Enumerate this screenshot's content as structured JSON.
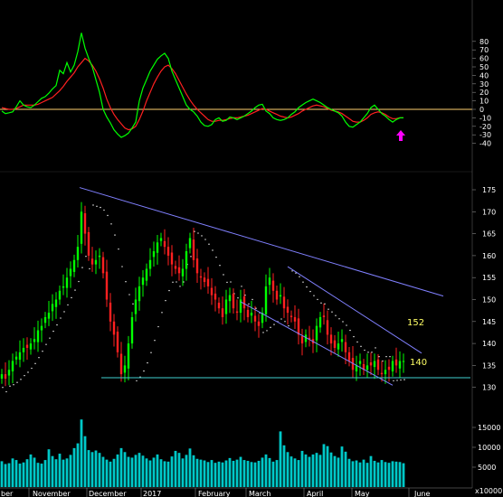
{
  "colors": {
    "background": "#000000",
    "up_candle": "#00ff00",
    "down_candle": "#ff2020",
    "volume": "#00c8c8",
    "trendline": "#8080ff",
    "support": "#40d0d0",
    "osc_fast": "#00ff00",
    "osc_slow": "#ff2020",
    "zero_line": "#ffd070",
    "sar": "#ffffff",
    "annotation": "#ffff66",
    "arrow": "#ff00ff",
    "text": "#ffffff"
  },
  "months": [
    "ber",
    "November",
    "December",
    "2017",
    "February",
    "March",
    "April",
    "May",
    "June"
  ],
  "axes": {
    "osc_ticks": [
      "80",
      "70",
      "60",
      "50",
      "40",
      "30",
      "20",
      "10",
      "0",
      "-10",
      "-20",
      "-30",
      "-40"
    ],
    "price_ticks": [
      "175",
      "170",
      "165",
      "160",
      "155",
      "150",
      "145",
      "140",
      "135",
      "130"
    ],
    "volume_ticks": [
      "15000",
      "10000",
      "5000"
    ],
    "volume_unit": "x10000"
  },
  "annotations": {
    "upper_target": "152",
    "lower_target": "140"
  },
  "chart_data": [
    {
      "type": "line",
      "panel": "oscillator",
      "ylim": [
        -45,
        90
      ],
      "x": [
        0,
        4,
        8,
        12,
        16,
        20,
        24,
        28,
        32,
        36,
        40,
        44,
        48,
        52,
        56,
        60,
        64,
        68,
        72,
        76,
        80,
        84,
        88,
        92,
        96,
        100,
        104,
        108,
        112,
        116,
        120,
        124,
        128,
        132,
        136,
        140,
        144,
        148,
        152,
        156,
        160,
        164,
        168,
        172,
        176,
        180,
        184,
        188,
        192,
        196,
        200,
        204,
        208,
        212,
        216,
        220,
        224,
        228,
        232,
        236,
        240,
        244,
        248,
        252,
        256,
        260,
        264,
        268,
        272,
        276,
        280,
        284,
        288,
        292,
        296,
        300,
        304,
        308,
        312,
        316,
        320,
        324,
        328,
        332,
        336,
        340,
        344,
        348,
        352,
        356,
        360,
        364,
        368,
        372,
        376,
        380,
        384,
        388,
        392,
        396,
        400,
        404,
        408,
        412,
        416,
        420,
        424,
        428,
        432,
        436,
        440,
        444
      ],
      "series": [
        {
          "values": [
            -2,
            -5,
            -4,
            -3,
            3,
            10,
            5,
            3,
            2,
            5,
            9,
            13,
            15,
            19,
            24,
            28,
            46,
            42,
            55,
            44,
            52,
            68,
            90,
            72,
            60,
            50,
            35,
            20,
            0,
            -9,
            -16,
            -24,
            -29,
            -33,
            -31,
            -28,
            -22,
            -15,
            10,
            25,
            35,
            45,
            52,
            59,
            63,
            66,
            60,
            45,
            35,
            25,
            15,
            5,
            0,
            -3,
            -8,
            -15,
            -19,
            -20,
            -18,
            -12,
            -10,
            -14,
            -13,
            -9,
            -10,
            -12,
            -10,
            -8,
            -5,
            -2,
            2,
            5,
            6,
            -2,
            -5,
            -10,
            -12,
            -13,
            -12,
            -10,
            -6,
            -3,
            2,
            5,
            8,
            10,
            12,
            10,
            8,
            5,
            2,
            0,
            -2,
            -4,
            -8,
            -15,
            -20,
            -21,
            -18,
            -15,
            -10,
            -5,
            2,
            5,
            0,
            -5,
            -8,
            -12,
            -15,
            -12,
            -10,
            -10
          ]
        },
        {
          "values": [
            2,
            1,
            0,
            0,
            1,
            3,
            5,
            5,
            5,
            5,
            6,
            8,
            10,
            12,
            14,
            18,
            22,
            27,
            33,
            38,
            43,
            50,
            55,
            60,
            57,
            52,
            45,
            36,
            25,
            12,
            2,
            -6,
            -12,
            -17,
            -22,
            -24,
            -23,
            -20,
            -12,
            -2,
            10,
            20,
            30,
            38,
            45,
            50,
            52,
            48,
            42,
            34,
            26,
            18,
            11,
            5,
            0,
            -4,
            -8,
            -12,
            -14,
            -14,
            -13,
            -13,
            -12,
            -11,
            -10,
            -10,
            -9,
            -8,
            -7,
            -5,
            -3,
            -1,
            1,
            0,
            -2,
            -4,
            -6,
            -8,
            -9,
            -10,
            -9,
            -7,
            -5,
            -2,
            0,
            2,
            4,
            5,
            4,
            3,
            1,
            -1,
            -2,
            -3,
            -5,
            -8,
            -11,
            -14,
            -15,
            -15,
            -13,
            -10,
            -6,
            -4,
            -3,
            -4,
            -6,
            -9,
            -11,
            -11,
            -10,
            -10
          ]
        }
      ]
    },
    {
      "type": "line",
      "panel": "price",
      "ylim": [
        128,
        178
      ],
      "x": [
        0,
        4,
        8,
        12,
        16,
        20,
        24,
        28,
        32,
        36,
        40,
        44,
        48,
        52,
        56,
        60,
        64,
        68,
        72,
        76,
        80,
        84,
        88,
        92,
        96,
        100,
        104,
        108,
        112,
        116,
        120,
        124,
        128,
        132,
        136,
        140,
        144,
        148,
        152,
        156,
        160,
        164,
        168,
        172,
        176,
        180,
        184,
        188,
        192,
        196,
        200,
        204,
        208,
        212,
        216,
        220,
        224,
        228,
        232,
        236,
        240,
        244,
        248,
        252,
        256,
        260,
        264,
        268,
        272,
        276,
        280,
        284,
        288,
        292,
        296,
        300,
        304,
        308,
        312,
        316,
        320,
        324,
        328,
        332,
        336,
        340,
        344,
        348,
        352,
        356,
        360,
        364,
        368,
        372,
        376,
        380,
        384,
        388,
        392,
        396,
        400,
        404,
        408,
        412,
        416,
        420,
        424,
        428,
        432,
        436,
        440,
        444
      ],
      "values": [
        133,
        132,
        134,
        136,
        137,
        138,
        139,
        139,
        140,
        141,
        143,
        144,
        146,
        147,
        149,
        150,
        152,
        153,
        155,
        157,
        159,
        162,
        170,
        165,
        160,
        158,
        159,
        160,
        156,
        150,
        145,
        142,
        138,
        133,
        135,
        140,
        146,
        150,
        153,
        155,
        157,
        159,
        161,
        163,
        164,
        162,
        160,
        158,
        157,
        156,
        157,
        161,
        164,
        159,
        156,
        155,
        154,
        153,
        151,
        150,
        148,
        146,
        150,
        151,
        148,
        147,
        150,
        148,
        146,
        147,
        145,
        144,
        147,
        153,
        155,
        152,
        150,
        151,
        148,
        147,
        146,
        145,
        142,
        140,
        142,
        141,
        140,
        144,
        146,
        146,
        142,
        140,
        139,
        140,
        141,
        138,
        136,
        134,
        135,
        136,
        134,
        135,
        135,
        136,
        134,
        133,
        134,
        134,
        136,
        135,
        136,
        136
      ],
      "overlays": {
        "upper_trendline": {
          "from": [
            88,
            175.5
          ],
          "to": [
            490,
            150.8
          ]
        },
        "channel_upper": {
          "from": [
            318,
            157.5
          ],
          "to": [
            466,
            137.8
          ]
        },
        "channel_lower": {
          "from": [
            266,
            149.5
          ],
          "to": [
            434,
            130.5
          ]
        },
        "support_line": {
          "from": [
            112,
            132.2
          ],
          "to": [
            520,
            132.2
          ]
        }
      }
    },
    {
      "type": "bar",
      "panel": "volume",
      "ylim": [
        0,
        18000
      ],
      "values": [
        6500,
        5800,
        6000,
        7200,
        6800,
        5900,
        6200,
        7000,
        8200,
        7400,
        6100,
        5900,
        6800,
        9500,
        7800,
        7000,
        8400,
        6900,
        7200,
        8100,
        9800,
        11000,
        17000,
        12800,
        9300,
        8800,
        9200,
        8600,
        7600,
        6900,
        6400,
        7100,
        8200,
        9800,
        8800,
        7600,
        7400,
        8100,
        8600,
        7900,
        7200,
        6700,
        7400,
        8200,
        7000,
        6500,
        6400,
        7700,
        9100,
        8600,
        7200,
        8100,
        9700,
        8000,
        7100,
        6900,
        6700,
        6300,
        6800,
        6100,
        6400,
        6200,
        6700,
        7300,
        6600,
        6900,
        7600,
        6800,
        6600,
        6300,
        6200,
        6600,
        7400,
        8200,
        7300,
        6400,
        6800,
        14000,
        10500,
        8800,
        7700,
        7200,
        6800,
        9100,
        8200,
        7600,
        8200,
        8600,
        8100,
        10800,
        10300,
        8700,
        7800,
        7400,
        10200,
        8900,
        7100,
        6500,
        6700,
        6200,
        6900,
        6100,
        7800,
        6600,
        6200,
        6800,
        6300,
        6100,
        6500,
        6400,
        6300,
        6000
      ]
    }
  ]
}
